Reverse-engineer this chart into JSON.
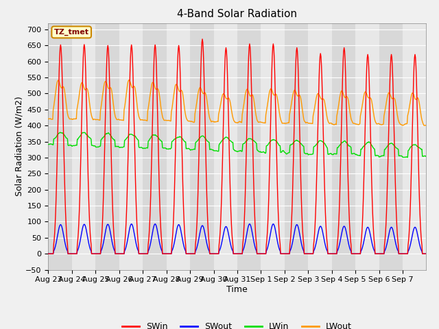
{
  "title": "4-Band Solar Radiation",
  "xlabel": "Time",
  "ylabel": "Solar Radiation (W/m2)",
  "annotation": "TZ_tmet",
  "ylim": [
    -50,
    720
  ],
  "yticks": [
    -50,
    0,
    50,
    100,
    150,
    200,
    250,
    300,
    350,
    400,
    450,
    500,
    550,
    600,
    650,
    700
  ],
  "legend_labels": [
    "SWin",
    "SWout",
    "LWin",
    "LWout"
  ],
  "colors": {
    "SWin": "#ff0000",
    "SWout": "#0000ff",
    "LWin": "#00dd00",
    "LWout": "#ff9900"
  },
  "fig_bg": "#f0f0f0",
  "plot_bg": "#e8e8e8",
  "grid_color": "#ffffff",
  "title_fontsize": 11,
  "axis_fontsize": 9,
  "tick_fontsize": 8
}
